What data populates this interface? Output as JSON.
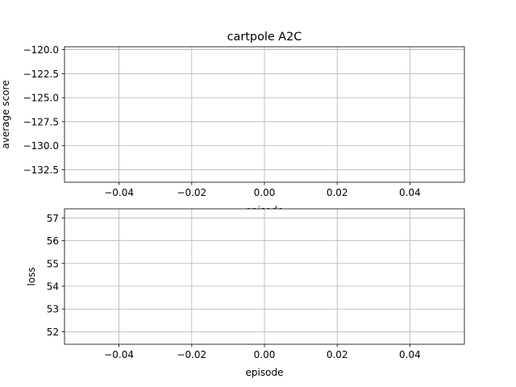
{
  "chart_data": [
    {
      "type": "line",
      "title": "cartpole A2C",
      "xlabel": "episode",
      "ylabel": "average score",
      "xlim": [
        -0.055,
        0.055
      ],
      "ylim": [
        -133.8,
        -119.7
      ],
      "x_ticks": [
        -0.04,
        -0.02,
        0.0,
        0.02,
        0.04
      ],
      "x_tick_labels": [
        "−0.04",
        "−0.02",
        "0.00",
        "0.02",
        "0.04"
      ],
      "y_ticks": [
        -120.0,
        -122.5,
        -125.0,
        -127.5,
        -130.0,
        -132.5
      ],
      "y_tick_labels": [
        "−120.0",
        "−122.5",
        "−125.0",
        "−127.5",
        "−130.0",
        "−132.5"
      ],
      "grid": true,
      "series": []
    },
    {
      "type": "line",
      "title": "",
      "xlabel": "episode",
      "ylabel": "loss",
      "xlim": [
        -0.055,
        0.055
      ],
      "ylim": [
        51.45,
        57.4
      ],
      "x_ticks": [
        -0.04,
        -0.02,
        0.0,
        0.02,
        0.04
      ],
      "x_tick_labels": [
        "−0.04",
        "−0.02",
        "0.00",
        "0.02",
        "0.04"
      ],
      "y_ticks": [
        52,
        53,
        54,
        55,
        56,
        57
      ],
      "y_tick_labels": [
        "52",
        "53",
        "54",
        "55",
        "56",
        "57"
      ],
      "grid": true,
      "series": []
    }
  ],
  "colors": {
    "grid": "#b0b0b0",
    "axes": "#000000",
    "background": "#ffffff"
  }
}
